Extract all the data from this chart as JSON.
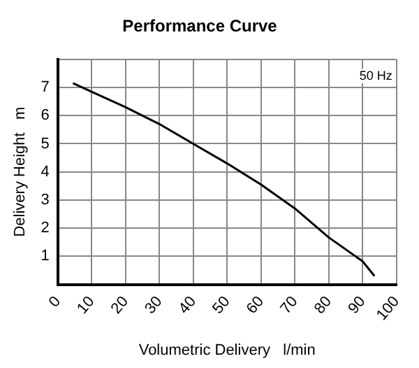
{
  "chart_data": {
    "type": "line",
    "title": "Performance Curve",
    "xlabel": "Volumetric Delivery   l/min",
    "ylabel": "Delivery Height   m",
    "annotations": [
      "50 Hz"
    ],
    "series": [
      {
        "color": "#000000",
        "x": [
          4.5,
          10,
          20,
          30,
          40,
          50,
          60,
          70,
          80,
          90,
          93.5
        ],
        "values": [
          7.15,
          6.85,
          6.3,
          5.7,
          5.0,
          4.3,
          3.55,
          2.7,
          1.67,
          0.82,
          0.3
        ]
      }
    ],
    "xlim": [
      0,
      100
    ],
    "xticks": [
      0,
      10,
      20,
      30,
      40,
      50,
      60,
      70,
      80,
      90,
      100
    ],
    "ylim": [
      0,
      8
    ],
    "yticks": [
      {
        "value": 0,
        "label": null
      },
      1,
      2,
      3,
      4,
      5,
      6,
      7,
      {
        "value": 8,
        "label": null
      }
    ],
    "grid": true,
    "legend": false,
    "marker": "none",
    "line_style": "solid"
  }
}
